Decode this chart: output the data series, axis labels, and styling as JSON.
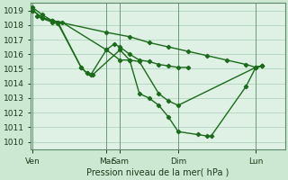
{
  "background_color": "#cde8d2",
  "plot_bg_color": "#dff0e4",
  "grid_color": "#b8d8c0",
  "line_color": "#1a6b1a",
  "xlabel_text": "Pression niveau de la mer( hPa )",
  "ylim": [
    1009.5,
    1019.5
  ],
  "yticks": [
    1010,
    1011,
    1012,
    1013,
    1014,
    1015,
    1016,
    1017,
    1018,
    1019
  ],
  "xtick_labels": [
    "Ven",
    "Mar",
    "Sam",
    "Dim",
    "Lun"
  ],
  "xtick_positions": [
    0,
    3.8,
    4.5,
    7.5,
    11.5
  ],
  "xlim": [
    -0.1,
    13.0
  ],
  "line1_x": [
    0.0,
    0.5,
    1.0,
    1.3,
    2.5,
    2.8,
    3.0,
    3.8,
    4.5,
    5.0,
    5.5,
    6.0,
    6.5,
    7.0,
    7.5,
    8.5,
    9.0,
    9.2,
    11.0,
    11.5,
    11.8
  ],
  "line1_y": [
    1019.2,
    1018.7,
    1018.3,
    1018.2,
    1015.1,
    1014.7,
    1014.6,
    1016.3,
    1015.6,
    1015.6,
    1013.3,
    1013.0,
    1012.5,
    1011.7,
    1010.7,
    1010.5,
    1010.4,
    1010.4,
    1013.8,
    1015.1,
    1015.2
  ],
  "line2_x": [
    0.2,
    1.0,
    1.3,
    2.5,
    2.8,
    3.1,
    4.5,
    5.0,
    5.5,
    6.5,
    7.0,
    7.5,
    11.5,
    11.8
  ],
  "line2_y": [
    1018.6,
    1018.2,
    1018.1,
    1015.1,
    1014.7,
    1014.6,
    1016.3,
    1015.6,
    1015.5,
    1013.3,
    1012.8,
    1012.5,
    1015.1,
    1015.2
  ],
  "line3_x": [
    0.0,
    0.5,
    1.0,
    1.5,
    3.8,
    4.2,
    4.5,
    5.0,
    5.5,
    6.0,
    6.5,
    7.0,
    7.5,
    8.0
  ],
  "line3_y": [
    1019.0,
    1018.5,
    1018.3,
    1018.2,
    1016.3,
    1016.7,
    1016.5,
    1016.0,
    1015.6,
    1015.5,
    1015.3,
    1015.2,
    1015.1,
    1015.1
  ],
  "line4_x": [
    0.0,
    0.5,
    1.0,
    3.8,
    5.0,
    6.0,
    7.0,
    8.0,
    9.0,
    10.0,
    11.0,
    11.5,
    11.8
  ],
  "line4_y": [
    1019.0,
    1018.5,
    1018.3,
    1017.5,
    1017.2,
    1016.8,
    1016.5,
    1016.2,
    1015.9,
    1015.6,
    1015.3,
    1015.1,
    1015.2
  ]
}
